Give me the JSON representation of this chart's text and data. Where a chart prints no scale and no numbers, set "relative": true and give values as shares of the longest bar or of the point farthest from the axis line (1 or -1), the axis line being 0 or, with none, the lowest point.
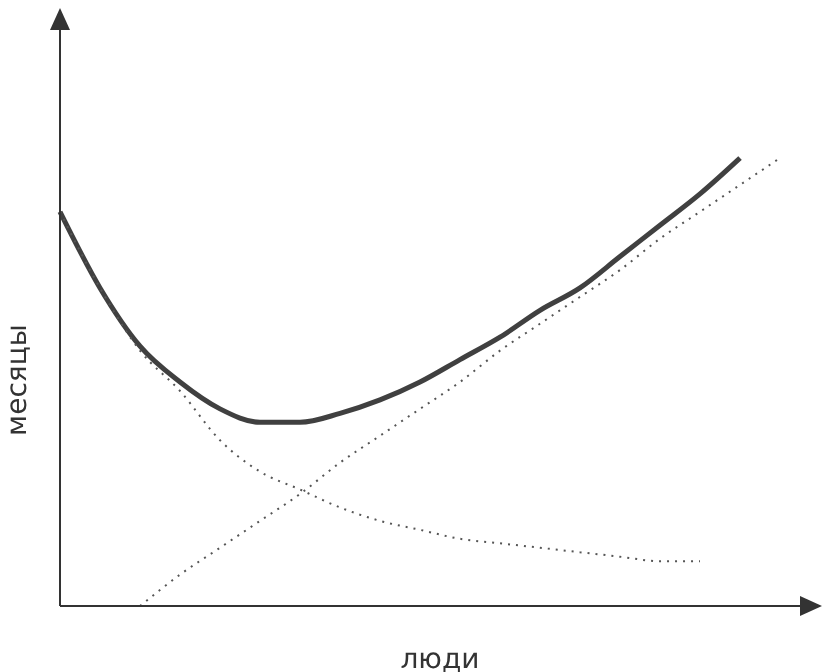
{
  "chart_data": {
    "type": "line",
    "relative": true,
    "xlabel": "люди",
    "ylabel": "месяцы",
    "grid": false,
    "marker": "none",
    "categories": [
      null,
      null,
      null,
      null,
      null,
      null,
      null,
      null,
      null,
      null,
      null,
      null,
      null,
      null,
      null,
      null,
      null,
      null,
      null,
      null
    ],
    "series": [
      {
        "color": "#404040",
        "line_style": "solid",
        "values": [
          0.88,
          0.71,
          0.58,
          0.5,
          0.44,
          0.41,
          0.41,
          0.43,
          0.46,
          0.5,
          0.55,
          0.6,
          0.66,
          0.71,
          0.78,
          0.85,
          0.92,
          1,
          null,
          null
        ]
      },
      {
        "color": "#555555",
        "line_style": "dotted",
        "values": [
          0.88,
          0.71,
          0.57,
          0.48,
          0.37,
          0.3,
          0.26,
          0.22,
          0.19,
          0.17,
          0.15,
          0.14,
          0.13,
          0.12,
          0.11,
          0.1,
          0.1,
          null,
          null,
          null
        ]
      },
      {
        "color": "#555555",
        "line_style": "dotted",
        "values": [
          null,
          null,
          0,
          0.07,
          0.13,
          0.19,
          0.25,
          0.32,
          0.38,
          0.44,
          0.5,
          0.57,
          0.63,
          0.69,
          0.75,
          0.82,
          0.88,
          0.94,
          1,
          null
        ]
      }
    ]
  }
}
